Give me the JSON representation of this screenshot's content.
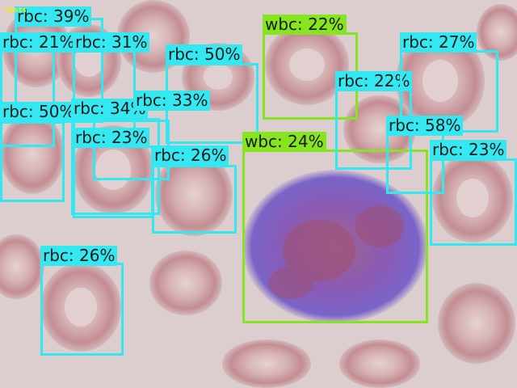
{
  "corner_label": "tests",
  "colors": {
    "rbc": "#34e8f2",
    "wbc": "#86e51e"
  },
  "detections": [
    {
      "cls": "rbc",
      "label": "rbc: 39%"
    },
    {
      "cls": "rbc",
      "label": "rbc: 21%"
    },
    {
      "cls": "rbc",
      "label": "rbc: 31%"
    },
    {
      "cls": "rbc",
      "label": "rbc: 50%"
    },
    {
      "cls": "rbc",
      "label": "rbc: 50%"
    },
    {
      "cls": "rbc",
      "label": "rbc: 34%"
    },
    {
      "cls": "rbc",
      "label": "rbc: 33%"
    },
    {
      "cls": "rbc",
      "label": "rbc: 23%"
    },
    {
      "cls": "rbc",
      "label": "rbc: 26%"
    },
    {
      "cls": "rbc",
      "label": "rbc: 26%"
    },
    {
      "cls": "wbc",
      "label": "wbc: 22%"
    },
    {
      "cls": "wbc",
      "label": "wbc: 24%"
    },
    {
      "cls": "rbc",
      "label": "rbc: 22%"
    },
    {
      "cls": "rbc",
      "label": "rbc: 27%"
    },
    {
      "cls": "rbc",
      "label": "rbc: 58%"
    },
    {
      "cls": "rbc",
      "label": "rbc: 23%"
    }
  ]
}
